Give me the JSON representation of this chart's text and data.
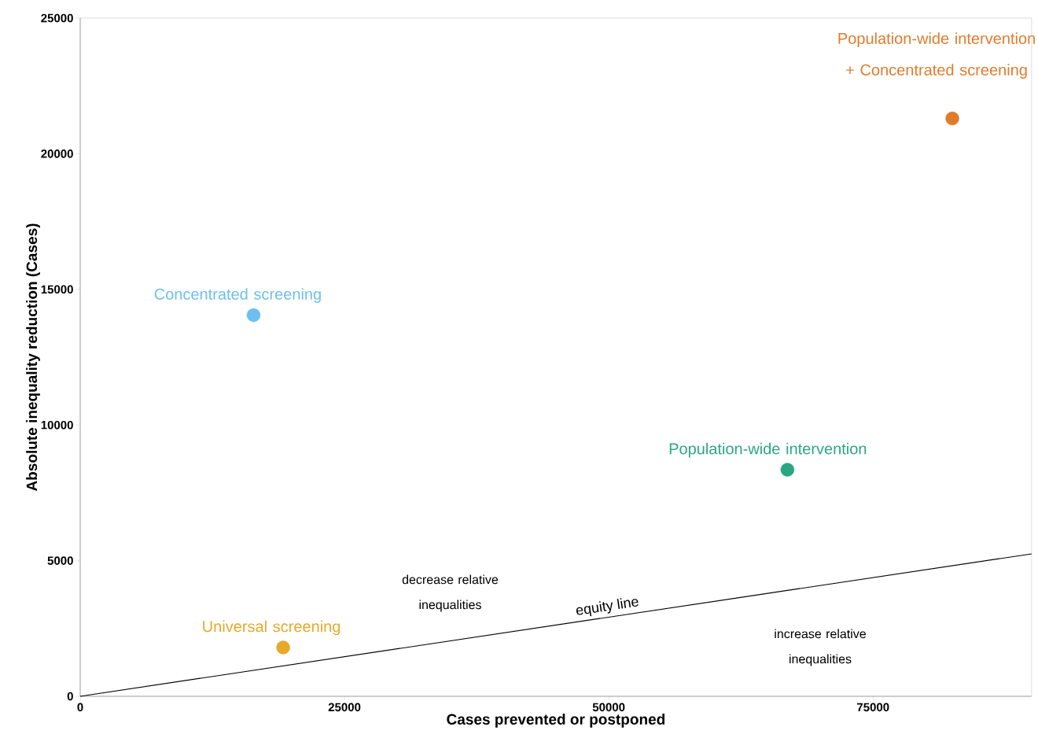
{
  "chart_data": {
    "type": "scatter",
    "xlabel": "Cases prevented or postponed",
    "ylabel": "Absolute inequality reduction (Cases)",
    "xlim": [
      0,
      90000
    ],
    "ylim": [
      0,
      25000
    ],
    "xticks": [
      0,
      25000,
      50000,
      75000
    ],
    "yticks": [
      0,
      5000,
      10000,
      15000,
      20000,
      25000
    ],
    "grid": false,
    "series": [
      {
        "name": "Concentrated screening",
        "color": "#6cbfee",
        "marker": "circle",
        "x": [
          16400
        ],
        "values": [
          14050
        ]
      },
      {
        "name": "Universal screening",
        "color": "#e8a92a",
        "marker": "circle",
        "x": [
          19200
        ],
        "values": [
          1800
        ]
      },
      {
        "name": "Population-wide intervention",
        "color": "#2aa683",
        "marker": "circle",
        "x": [
          66900
        ],
        "values": [
          8350
        ]
      },
      {
        "name": "Population-wide intervention + Concentrated screening",
        "color": "#e07b2c",
        "marker": "circle",
        "x": [
          82500
        ],
        "values": [
          21300
        ]
      },
      {
        "type": "line",
        "color": "#000000",
        "marker": "none",
        "x": [
          0,
          90000
        ],
        "values": [
          0,
          5250
        ]
      }
    ],
    "annotations": [
      {
        "text": "equity line",
        "x": 50000,
        "y": 2950
      },
      "decrease relative inequalities",
      "increase relative inequalities"
    ]
  }
}
